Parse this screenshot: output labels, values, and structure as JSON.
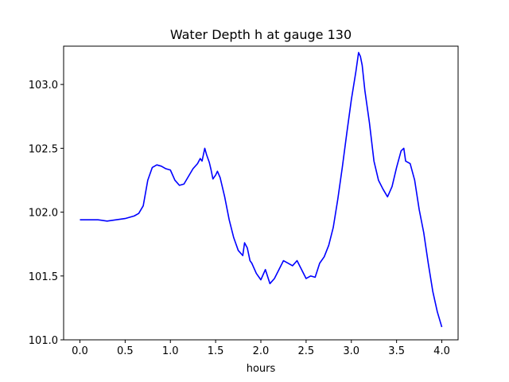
{
  "chart_data": {
    "type": "line",
    "title": "Water Depth h at gauge 130",
    "xlabel": "hours",
    "ylabel": "",
    "xlim": [
      -0.18,
      4.18
    ],
    "ylim": [
      101.0,
      103.3
    ],
    "xticks": [
      0.0,
      0.5,
      1.0,
      1.5,
      2.0,
      2.5,
      3.0,
      3.5,
      4.0
    ],
    "xtick_labels": [
      "0.0",
      "0.5",
      "1.0",
      "1.5",
      "2.0",
      "2.5",
      "3.0",
      "3.5",
      "4.0"
    ],
    "yticks": [
      101.0,
      101.5,
      102.0,
      102.5,
      103.0
    ],
    "ytick_labels": [
      "101.0",
      "101.5",
      "102.0",
      "102.5",
      "103.0"
    ],
    "grid": false,
    "legend": false,
    "series": [
      {
        "color": "#0000ff",
        "x": [
          0.0,
          0.1,
          0.2,
          0.3,
          0.4,
          0.5,
          0.6,
          0.65,
          0.7,
          0.75,
          0.8,
          0.85,
          0.9,
          0.95,
          1.0,
          1.05,
          1.1,
          1.15,
          1.2,
          1.25,
          1.3,
          1.33,
          1.35,
          1.38,
          1.4,
          1.43,
          1.45,
          1.47,
          1.5,
          1.52,
          1.55,
          1.6,
          1.65,
          1.7,
          1.75,
          1.8,
          1.82,
          1.85,
          1.88,
          1.9,
          1.95,
          2.0,
          2.05,
          2.1,
          2.15,
          2.2,
          2.25,
          2.3,
          2.35,
          2.4,
          2.45,
          2.5,
          2.55,
          2.6,
          2.65,
          2.7,
          2.75,
          2.8,
          2.85,
          2.9,
          2.95,
          3.0,
          3.05,
          3.08,
          3.1,
          3.12,
          3.15,
          3.2,
          3.25,
          3.3,
          3.35,
          3.4,
          3.45,
          3.5,
          3.55,
          3.58,
          3.6,
          3.65,
          3.7,
          3.75,
          3.8,
          3.85,
          3.9,
          3.95,
          4.0
        ],
        "values": [
          101.94,
          101.94,
          101.94,
          101.93,
          101.94,
          101.95,
          101.97,
          101.99,
          102.05,
          102.25,
          102.35,
          102.37,
          102.36,
          102.34,
          102.33,
          102.25,
          102.21,
          102.22,
          102.28,
          102.34,
          102.38,
          102.42,
          102.4,
          102.5,
          102.45,
          102.39,
          102.33,
          102.26,
          102.29,
          102.32,
          102.27,
          102.12,
          101.94,
          101.8,
          101.7,
          101.66,
          101.76,
          101.72,
          101.62,
          101.6,
          101.52,
          101.47,
          101.55,
          101.44,
          101.48,
          101.55,
          101.62,
          101.6,
          101.58,
          101.62,
          101.55,
          101.48,
          101.5,
          101.49,
          101.6,
          101.65,
          101.74,
          101.88,
          102.1,
          102.35,
          102.62,
          102.88,
          103.1,
          103.25,
          103.22,
          103.15,
          102.95,
          102.7,
          102.4,
          102.25,
          102.18,
          102.12,
          102.2,
          102.35,
          102.48,
          102.5,
          102.4,
          102.38,
          102.25,
          102.02,
          101.84,
          101.6,
          101.38,
          101.22,
          101.1
        ]
      }
    ]
  }
}
